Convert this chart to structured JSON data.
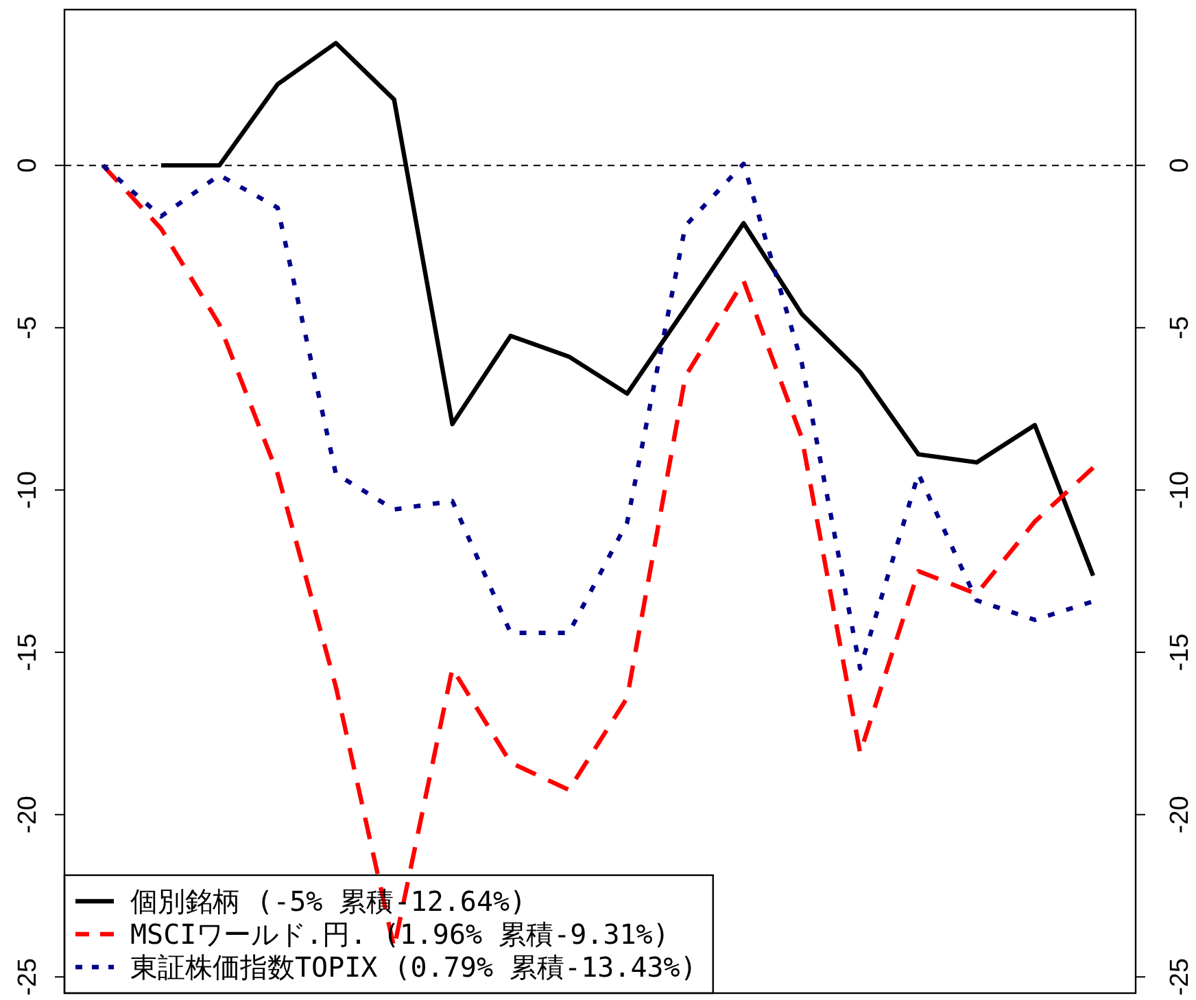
{
  "chart_data": {
    "type": "line",
    "categories": [
      null,
      null,
      null,
      null,
      null,
      null,
      null,
      null,
      null,
      null,
      null,
      null,
      null,
      null,
      null,
      null,
      null,
      null
    ],
    "series": [
      {
        "name": "個別銘柄 (-5% 累積-12.64%)",
        "color": "#000000",
        "line_style": "solid",
        "values": [
          null,
          0,
          0,
          2.5,
          3.77,
          2.03,
          -7.97,
          -5.25,
          -5.89,
          -7.03,
          -4.41,
          -1.78,
          -4.58,
          -6.36,
          -8.9,
          -9.15,
          -8.0,
          -12.64
        ]
      },
      {
        "name": "MSCIワールド.円. (1.96% 累積-9.31%)",
        "color": "#ff0000",
        "line_style": "dashed",
        "values": [
          0,
          -1.95,
          -4.9,
          -9.5,
          -16.06,
          -24.1,
          -15.5,
          -18.4,
          -19.24,
          -16.4,
          -6.5,
          -3.56,
          -8.4,
          -18.1,
          -12.5,
          -13.2,
          -10.97,
          -9.31
        ]
      },
      {
        "name": "東証株価指数TOPIX (0.79% 累積-13.43%)",
        "color": "#00008b",
        "line_style": "dotted",
        "values": [
          0,
          -1.57,
          -0.3,
          -1.3,
          -9.5,
          -10.6,
          -10.34,
          -14.4,
          -14.4,
          -11.0,
          -1.86,
          0.05,
          -6.1,
          -15.5,
          -9.5,
          -13.4,
          -14.0,
          -13.43
        ]
      }
    ],
    "ylim": [
      -25.5,
      4.8
    ],
    "yticks": [
      0,
      -5,
      -10,
      -15,
      -20,
      -25
    ],
    "y2lim": [
      -25.5,
      4.8
    ],
    "y2ticks": [
      0,
      -5,
      -10,
      -15,
      -20,
      -25
    ],
    "tick_labels": "y",
    "ref_lines": [
      {
        "axis": "y",
        "value": 0,
        "color": "#000000",
        "line_style": "dashed"
      }
    ],
    "grid": false,
    "legend": "bottom left"
  }
}
